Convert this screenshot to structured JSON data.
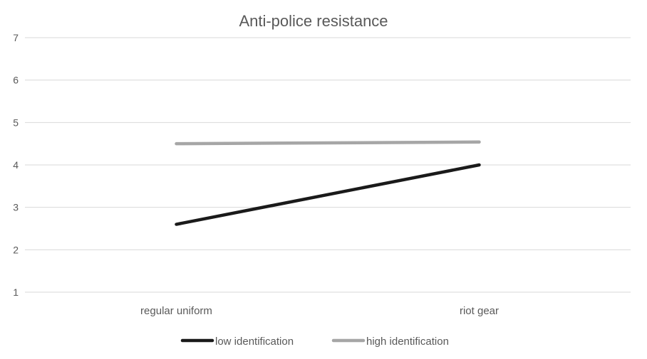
{
  "chart_data": {
    "type": "line",
    "title": "Anti-police resistance",
    "categories": [
      "regular uniform",
      "riot gear"
    ],
    "series": [
      {
        "name": "low identification",
        "values": [
          2.6,
          4.0
        ],
        "color": "#1a1a1a"
      },
      {
        "name": "high identification",
        "values": [
          4.5,
          4.54
        ],
        "color": "#a6a6a6"
      }
    ],
    "ylim": [
      1,
      7
    ],
    "yticks": [
      1,
      2,
      3,
      4,
      5,
      6,
      7
    ],
    "grid": true,
    "legend_position": "bottom",
    "xlabel": "",
    "ylabel": ""
  }
}
